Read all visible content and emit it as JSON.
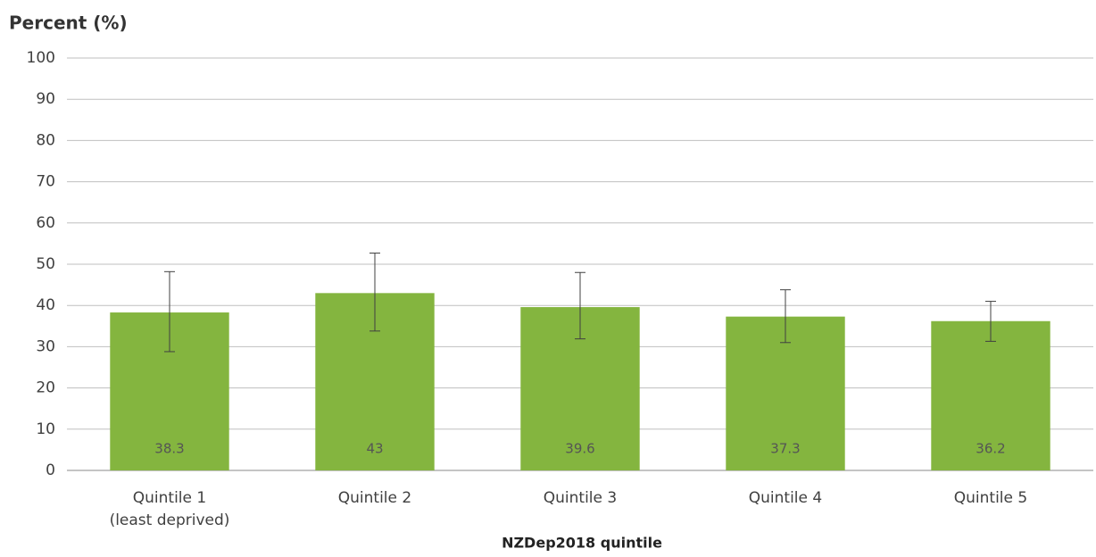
{
  "chart_data": {
    "type": "bar",
    "y_axis_label": "Percent (%)",
    "x_axis_label": "NZDep2018 quintile",
    "categories": [
      "Quintile 1\n(least deprived)",
      "Quintile 2",
      "Quintile 3",
      "Quintile 4",
      "Quintile 5"
    ],
    "values": [
      38.3,
      43,
      39.6,
      37.3,
      36.2
    ],
    "ci_lower": [
      28.8,
      33.8,
      31.9,
      31,
      31.3
    ],
    "ci_upper": [
      48.2,
      52.7,
      48,
      43.8,
      41
    ],
    "color": "#84b53f",
    "ylim": [
      0,
      100
    ],
    "yticks": [
      0,
      10,
      20,
      30,
      40,
      50,
      60,
      70,
      80,
      90,
      100
    ],
    "grid": true
  }
}
